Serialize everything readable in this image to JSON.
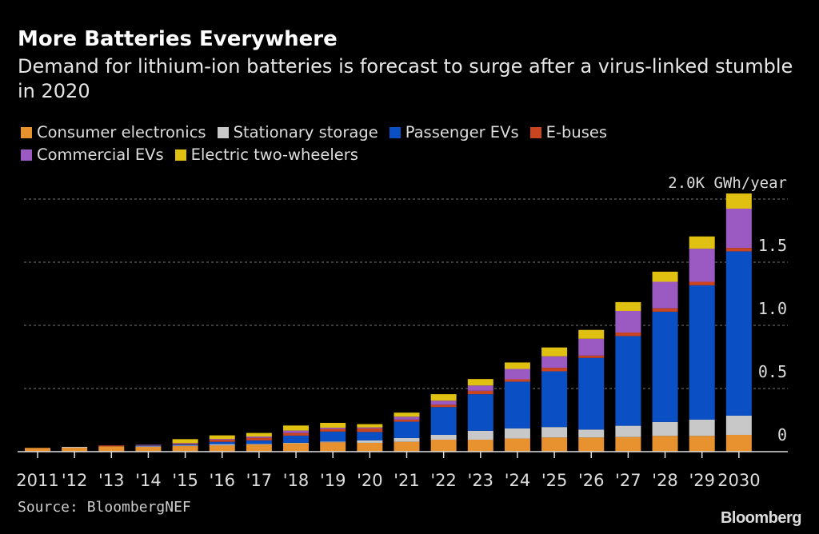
{
  "header": {
    "title": "More Batteries Everywhere",
    "subtitle": "Demand for lithium-ion batteries is forecast to surge after a virus-linked stumble in 2020"
  },
  "footer": {
    "source": "Source: BloombergNEF",
    "logo": "Bloomberg"
  },
  "chart_data": {
    "type": "bar",
    "stacked": true,
    "title": "More Batteries Everywhere",
    "subtitle": "Demand for lithium-ion batteries is forecast to surge after a virus-linked stumble in 2020",
    "ylabel": "2.0K GWh/year",
    "ylim": [
      0,
      2.0
    ],
    "yticks": [
      {
        "value": 0,
        "label": "0"
      },
      {
        "value": 0.5,
        "label": "0.5"
      },
      {
        "value": 1.0,
        "label": "1.0"
      },
      {
        "value": 1.5,
        "label": "1.5"
      },
      {
        "value": 2.0,
        "label": "2.0K GWh/year"
      }
    ],
    "grid": true,
    "legend_position": "top-left",
    "categories": [
      "2011",
      "'12",
      "'13",
      "'14",
      "'15",
      "'16",
      "'17",
      "'18",
      "'19",
      "'20",
      "'21",
      "'22",
      "'23",
      "'24",
      "'25",
      "'26",
      "'27",
      "'28",
      "'29",
      "2030"
    ],
    "series": [
      {
        "name": "Consumer electronics",
        "color": "#e8922f",
        "values": [
          0.03,
          0.032,
          0.042,
          0.038,
          0.044,
          0.049,
          0.057,
          0.066,
          0.074,
          0.07,
          0.078,
          0.095,
          0.095,
          0.104,
          0.112,
          0.112,
          0.116,
          0.125,
          0.125,
          0.133
        ]
      },
      {
        "name": "Stationary storage",
        "color": "#c8c8c8",
        "values": [
          0,
          0.006,
          0,
          0.004,
          0.005,
          0.01,
          0.004,
          0.004,
          0.006,
          0.019,
          0.03,
          0.038,
          0.07,
          0.08,
          0.083,
          0.063,
          0.089,
          0.11,
          0.129,
          0.152
        ]
      },
      {
        "name": "Passenger EVs",
        "color": "#0a4fc4",
        "values": [
          0,
          0,
          0,
          0.006,
          0.008,
          0.019,
          0.028,
          0.057,
          0.079,
          0.067,
          0.129,
          0.22,
          0.29,
          0.37,
          0.441,
          0.567,
          0.71,
          0.873,
          1.063,
          1.301
        ]
      },
      {
        "name": "E-buses",
        "color": "#c84520",
        "values": [
          0,
          0,
          0.007,
          0.003,
          0.006,
          0.017,
          0.021,
          0.021,
          0.021,
          0.028,
          0.017,
          0.019,
          0.027,
          0.019,
          0.028,
          0.019,
          0.028,
          0.027,
          0.028,
          0.027
        ]
      },
      {
        "name": "Commercial EVs",
        "color": "#9b59c2",
        "values": [
          0,
          0,
          0,
          0.004,
          0.005,
          0.006,
          0.01,
          0.019,
          0.01,
          0.008,
          0.023,
          0.032,
          0.042,
          0.082,
          0.091,
          0.133,
          0.171,
          0.21,
          0.262,
          0.311
        ]
      },
      {
        "name": "Electric two-wheelers",
        "color": "#e0c010",
        "values": [
          0,
          0,
          0,
          0,
          0.031,
          0.028,
          0.028,
          0.04,
          0.038,
          0.026,
          0.032,
          0.051,
          0.051,
          0.051,
          0.07,
          0.07,
          0.07,
          0.08,
          0.097,
          0.12
        ]
      }
    ]
  }
}
